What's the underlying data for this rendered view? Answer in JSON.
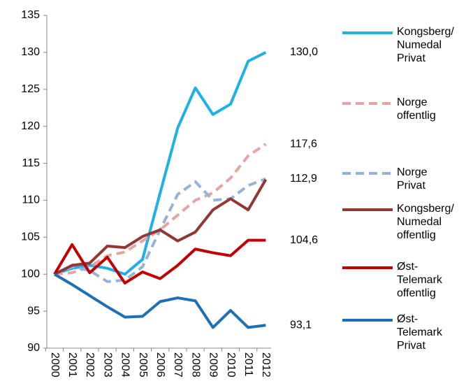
{
  "chart_data": {
    "type": "line",
    "categories": [
      "2000",
      "2001",
      "2002",
      "2003",
      "2004",
      "2005",
      "2006",
      "2007",
      "2008",
      "2009",
      "2010",
      "2011",
      "2012"
    ],
    "series": [
      {
        "name": "Kongsberg/\nNumedal\nPrivat",
        "color": "#1fb1e6",
        "dashed": false,
        "end_label": "130,0",
        "values": [
          100,
          100.8,
          101.2,
          100.8,
          100,
          102,
          111,
          119.8,
          125.2,
          121.6,
          123,
          128.8,
          130.0
        ]
      },
      {
        "name": "Norge\noffentlig",
        "color": "#e6a5a3",
        "dashed": true,
        "end_label": "117,6",
        "values": [
          100,
          100.2,
          101,
          102.5,
          103,
          104.5,
          106,
          108,
          110,
          111,
          113,
          116,
          117.6
        ]
      },
      {
        "name": "Norge\nPrivat",
        "color": "#95b3d7",
        "dashed": true,
        "end_label": "112,9",
        "values": [
          100,
          101,
          100.5,
          99,
          99.2,
          101,
          106,
          110.8,
          112.5,
          110,
          110.2,
          112,
          112.9
        ]
      },
      {
        "name": "Kongsberg/\nNumedal\noffentlig",
        "color": "#943634",
        "dashed": false,
        "values": [
          100,
          101.2,
          101.5,
          103.8,
          103.6,
          105.1,
          106,
          104.5,
          105.7,
          108.7,
          110.2,
          108.7,
          112.8
        ]
      },
      {
        "name": "Øst-\nTelemark\noffentlig",
        "color": "#c00000",
        "dashed": false,
        "end_label": "104,6",
        "values": [
          100,
          104,
          100.2,
          102.3,
          98.8,
          100.3,
          99.4,
          101.2,
          103.4,
          102.9,
          102.5,
          104.6,
          104.6
        ]
      },
      {
        "name": "Øst-\nTelemark\nPrivat",
        "color": "#1f6fb6",
        "dashed": false,
        "end_label": "93,1",
        "values": [
          100,
          98.6,
          97.1,
          95.6,
          94.2,
          94.3,
          96.3,
          96.8,
          96.4,
          92.8,
          95.1,
          92.8,
          93.1
        ]
      }
    ],
    "ylim": [
      90,
      135
    ],
    "yticks": [
      90,
      95,
      100,
      105,
      110,
      115,
      120,
      125,
      130,
      135
    ]
  }
}
